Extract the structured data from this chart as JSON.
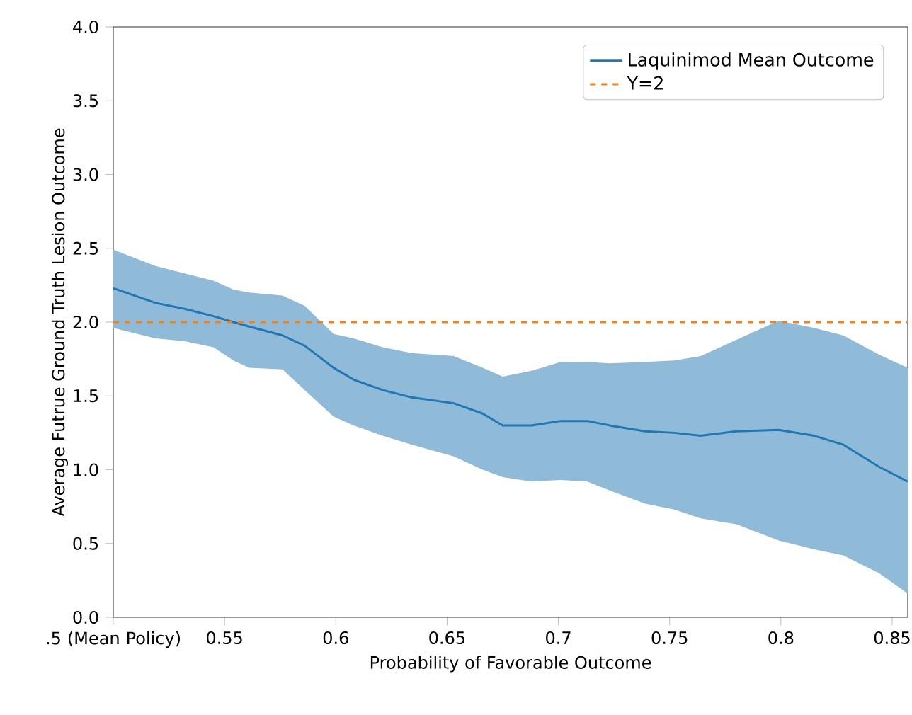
{
  "chart_data": {
    "type": "line",
    "xlabel": "Probability of Favorable Outcome",
    "ylabel": "Average Futrue Ground Truth Lesion Outcome",
    "x": [
      0.5,
      0.519,
      0.532,
      0.545,
      0.554,
      0.561,
      0.576,
      0.586,
      0.599,
      0.608,
      0.621,
      0.634,
      0.653,
      0.666,
      0.675,
      0.688,
      0.701,
      0.713,
      0.723,
      0.739,
      0.752,
      0.764,
      0.78,
      0.799,
      0.815,
      0.828,
      0.844,
      0.857
    ],
    "series": [
      {
        "name": "Laquinimod Mean Outcome",
        "color": "#1f77b4",
        "values": [
          2.23,
          2.13,
          2.09,
          2.04,
          2.0,
          1.97,
          1.91,
          1.84,
          1.69,
          1.61,
          1.54,
          1.49,
          1.45,
          1.38,
          1.3,
          1.3,
          1.33,
          1.33,
          1.3,
          1.26,
          1.25,
          1.23,
          1.26,
          1.27,
          1.23,
          1.17,
          1.02,
          0.92
        ],
        "upper": [
          2.49,
          2.38,
          2.33,
          2.28,
          2.22,
          2.2,
          2.18,
          2.11,
          1.92,
          1.89,
          1.83,
          1.79,
          1.77,
          1.69,
          1.63,
          1.67,
          1.73,
          1.73,
          1.72,
          1.73,
          1.74,
          1.77,
          1.88,
          2.01,
          1.96,
          1.91,
          1.78,
          1.69
        ],
        "lower": [
          1.96,
          1.89,
          1.87,
          1.83,
          1.74,
          1.69,
          1.68,
          1.54,
          1.36,
          1.3,
          1.23,
          1.17,
          1.09,
          1.0,
          0.95,
          0.92,
          0.93,
          0.92,
          0.86,
          0.77,
          0.73,
          0.67,
          0.63,
          0.52,
          0.46,
          0.42,
          0.3,
          0.16
        ]
      }
    ],
    "ref_lines": [
      {
        "axis": "y",
        "value": 2,
        "label": "Y=2",
        "color": "#ff7f0e",
        "line_style": "dashed"
      }
    ],
    "xlim": [
      0.5,
      0.857
    ],
    "xticks": [
      {
        "value": 0.5,
        "label": ".5 (Mean Policy)"
      },
      0.55,
      0.6,
      0.65,
      0.7,
      0.75,
      0.8,
      0.85
    ],
    "ylim": [
      0,
      4
    ],
    "yticks": [
      {
        "value": 0,
        "label": "0.0"
      },
      0.5,
      {
        "value": 1,
        "label": "1.0"
      },
      1.5,
      {
        "value": 2,
        "label": "2.0"
      },
      2.5,
      {
        "value": 3,
        "label": "3.0"
      },
      3.5,
      {
        "value": 4,
        "label": "4.0"
      }
    ],
    "legend": "top right",
    "grid": false,
    "marker": "none",
    "line_style": "solid"
  }
}
